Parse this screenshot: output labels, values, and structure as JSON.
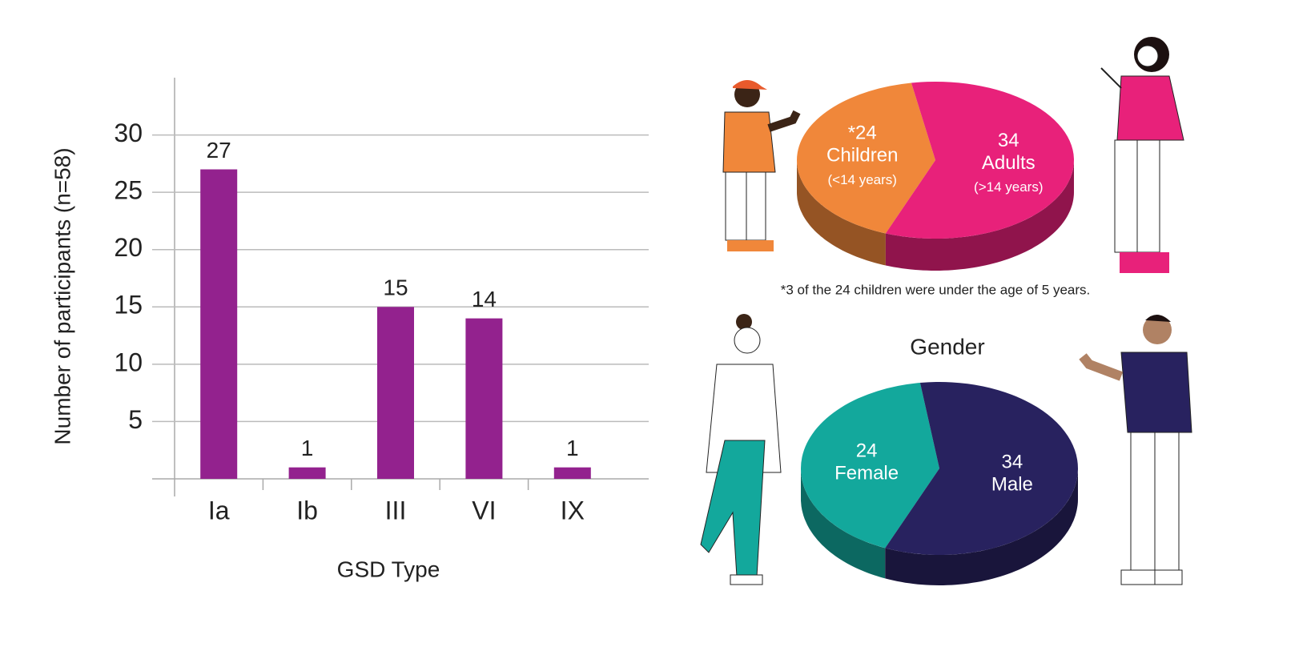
{
  "chart_data": [
    {
      "type": "bar",
      "x_label": "GSD Type",
      "y_label": "Number of participants (n=58)",
      "categories": [
        "Ia",
        "Ib",
        "III",
        "VI",
        "IX"
      ],
      "values": [
        27,
        1,
        15,
        14,
        1
      ],
      "color": "#93228e",
      "ylim": [
        0,
        35
      ],
      "yticks": [
        5,
        10,
        15,
        20,
        25,
        30
      ],
      "grid": true
    },
    {
      "type": "pie",
      "categories": [
        "Children",
        "Adults"
      ],
      "values": [
        24,
        34
      ],
      "value_labels": [
        "*24",
        "34"
      ],
      "category_notes": [
        "(<14 years)",
        "(>14 years)"
      ],
      "colors": [
        "#f0873a",
        "#e8217a"
      ],
      "footnote": "*3 of the 24 children were under the age of 5 years."
    },
    {
      "type": "pie",
      "title": "Gender",
      "categories": [
        "Female",
        "Male"
      ],
      "values": [
        24,
        34
      ],
      "colors": [
        "#13a89c",
        "#28225f"
      ]
    }
  ]
}
